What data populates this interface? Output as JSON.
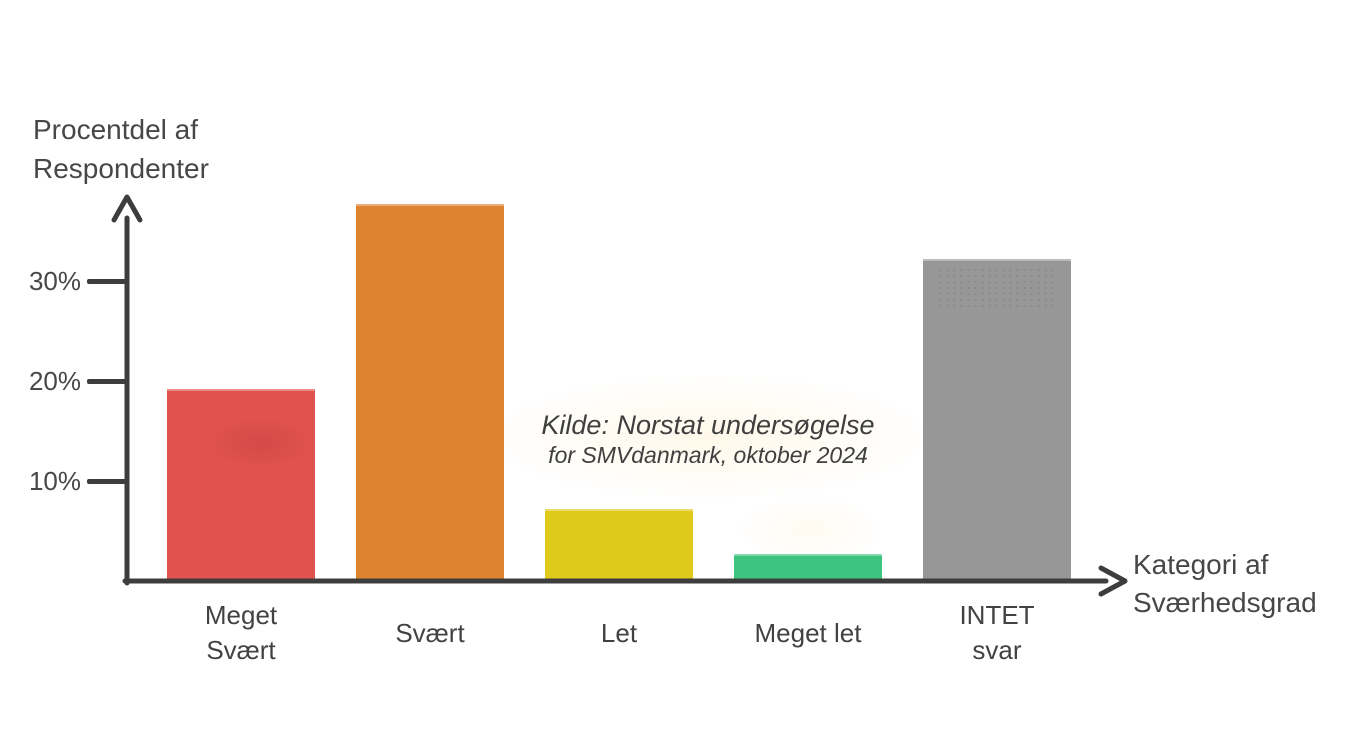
{
  "chart": {
    "y_axis_title": "Procentdel af\nRespondenter",
    "x_axis_title": "Kategori af\nSværhedsgrad"
  },
  "annotation": {
    "line1": "Kilde: Norstat undersøgelse",
    "line2": "for SMVdanmark, oktober 2024"
  },
  "chart_data": {
    "type": "bar",
    "title": "",
    "xlabel": "Kategori af Sværhedsgrad",
    "ylabel": "Procentdel af Respondenter",
    "categories": [
      "Meget\nSvært",
      "Svært",
      "Let",
      "Meget let",
      "INTET\nsvar"
    ],
    "values": [
      19,
      37.5,
      7,
      2.5,
      32
    ],
    "unit": "%",
    "bar_colors": [
      "#e0524e",
      "#de8430",
      "#dfc91a",
      "#3dc47e",
      "#979797"
    ],
    "yticks_labels": [
      "10%",
      "20%",
      "30%"
    ],
    "ytick_values": [
      10,
      20,
      30
    ],
    "ylim": [
      0,
      40
    ],
    "grid": false,
    "legend": null,
    "annotation_text": "Kilde: Norstat undersøgelse for SMVdanmark, oktober 2024",
    "colors": {
      "axis": "#3d3d3d",
      "text": "#474747",
      "background": "#ffffff"
    }
  }
}
